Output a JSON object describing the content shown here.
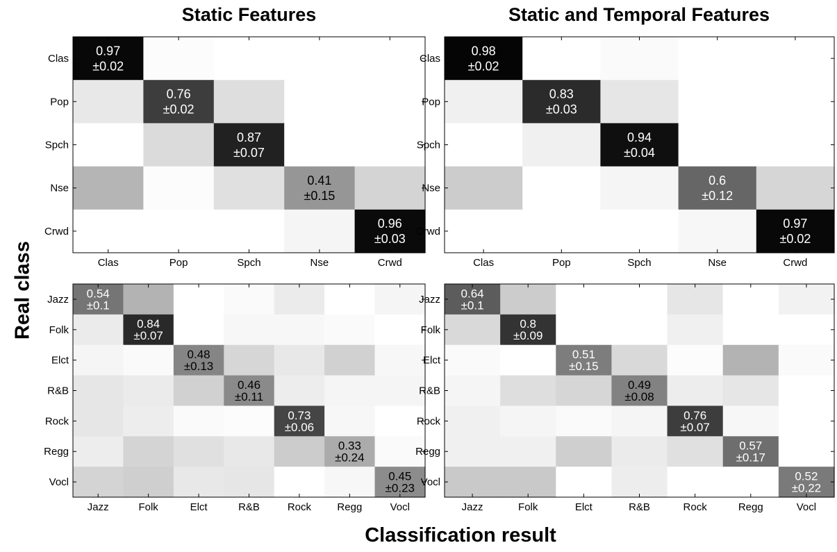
{
  "figure": {
    "title_left": "Static Features",
    "title_right": "Static and Temporal Features",
    "ylabel": "Real class",
    "xlabel": "Classification result"
  },
  "chart_data": [
    {
      "type": "heatmap",
      "title": "Static Features",
      "rows": [
        "Clas",
        "Pop",
        "Spch",
        "Nse",
        "Crwd"
      ],
      "cols": [
        "Clas",
        "Pop",
        "Spch",
        "Nse",
        "Crwd"
      ],
      "values": [
        [
          0.97,
          0.01,
          0.0,
          0.0,
          0.0
        ],
        [
          0.09,
          0.76,
          0.13,
          0.0,
          0.0
        ],
        [
          0.0,
          0.14,
          0.87,
          0.0,
          0.0
        ],
        [
          0.29,
          0.01,
          0.12,
          0.41,
          0.17
        ],
        [
          0.0,
          0.0,
          0.0,
          0.04,
          0.96
        ]
      ],
      "diagonal_labels": [
        "0.97\n±0.02",
        "0.76\n±0.02",
        "0.87\n±0.07",
        "0.41\n±0.15",
        "0.96\n±0.03"
      ],
      "colormap": "gray (white = 0, black = 1)"
    },
    {
      "type": "heatmap",
      "title": "Static and Temporal Features",
      "rows": [
        "Clas",
        "Pop",
        "Spch",
        "Nse",
        "Crwd"
      ],
      "cols": [
        "Clas",
        "Pop",
        "Spch",
        "Nse",
        "Crwd"
      ],
      "values": [
        [
          0.98,
          0.0,
          0.02,
          0.0,
          0.0
        ],
        [
          0.06,
          0.83,
          0.1,
          0.0,
          0.0
        ],
        [
          0.0,
          0.06,
          0.94,
          0.0,
          0.0
        ],
        [
          0.2,
          0.0,
          0.04,
          0.6,
          0.16
        ],
        [
          0.0,
          0.0,
          0.0,
          0.03,
          0.97
        ]
      ],
      "diagonal_labels": [
        "0.98\n±0.02",
        "0.83\n±0.03",
        "0.94\n±0.04",
        "0.6\n±0.12",
        "0.97\n±0.02"
      ],
      "colormap": "gray (white = 0, black = 1)"
    },
    {
      "type": "heatmap",
      "title": "",
      "rows": [
        "Jazz",
        "Folk",
        "Elct",
        "R&B",
        "Rock",
        "Regg",
        "Vocl"
      ],
      "cols": [
        "Jazz",
        "Folk",
        "Elct",
        "R&B",
        "Rock",
        "Regg",
        "Vocl"
      ],
      "values": [
        [
          0.54,
          0.3,
          0.0,
          0.02,
          0.08,
          0.0,
          0.04
        ],
        [
          0.08,
          0.84,
          0.0,
          0.03,
          0.03,
          0.02,
          0.0
        ],
        [
          0.04,
          0.02,
          0.48,
          0.16,
          0.09,
          0.18,
          0.03
        ],
        [
          0.1,
          0.08,
          0.18,
          0.46,
          0.07,
          0.04,
          0.04
        ],
        [
          0.1,
          0.07,
          0.02,
          0.01,
          0.73,
          0.03,
          0.0
        ],
        [
          0.07,
          0.17,
          0.12,
          0.09,
          0.2,
          0.33,
          0.02
        ],
        [
          0.17,
          0.19,
          0.09,
          0.1,
          0.0,
          0.03,
          0.45
        ]
      ],
      "diagonal_labels": [
        "0.54\n±0.1",
        "0.84\n±0.07",
        "0.48\n±0.13",
        "0.46\n±0.11",
        "0.73\n±0.06",
        "0.33\n±0.24",
        "0.45\n±0.23"
      ],
      "colormap": "gray (white = 0, black = 1)"
    },
    {
      "type": "heatmap",
      "title": "",
      "rows": [
        "Jazz",
        "Folk",
        "Elct",
        "R&B",
        "Rock",
        "Regg",
        "Vocl"
      ],
      "cols": [
        "Jazz",
        "Folk",
        "Elct",
        "R&B",
        "Rock",
        "Regg",
        "Vocl"
      ],
      "values": [
        [
          0.64,
          0.2,
          0.0,
          0.0,
          0.1,
          0.0,
          0.05
        ],
        [
          0.15,
          0.8,
          0.0,
          0.0,
          0.06,
          0.0,
          0.0
        ],
        [
          0.02,
          0.0,
          0.51,
          0.15,
          0.01,
          0.3,
          0.02
        ],
        [
          0.04,
          0.13,
          0.16,
          0.49,
          0.07,
          0.1,
          0.0
        ],
        [
          0.06,
          0.04,
          0.02,
          0.04,
          0.76,
          0.03,
          0.0
        ],
        [
          0.06,
          0.06,
          0.19,
          0.08,
          0.12,
          0.57,
          0.0
        ],
        [
          0.21,
          0.21,
          0.0,
          0.07,
          0.0,
          0.0,
          0.52
        ]
      ],
      "diagonal_labels": [
        "0.64\n±0.1",
        "0.8\n±0.09",
        "0.51\n±0.15",
        "0.49\n±0.08",
        "0.76\n±0.07",
        "0.57\n±0.17",
        "0.52\n±0.22"
      ],
      "colormap": "gray (white = 0, black = 1)"
    }
  ]
}
